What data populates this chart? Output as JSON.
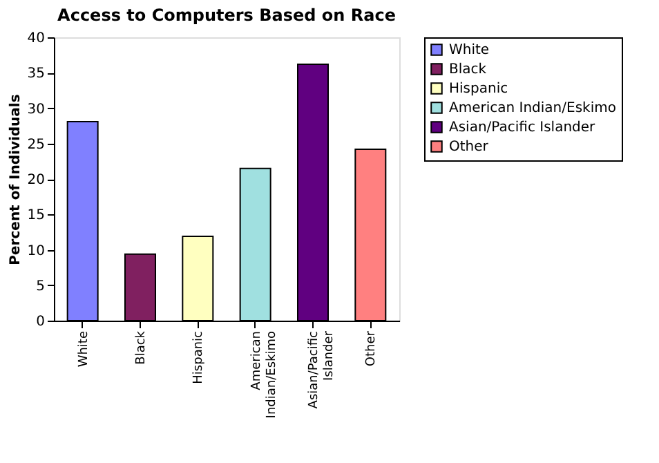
{
  "chart_data": {
    "type": "bar",
    "title": "Access to Computers Based on Race",
    "ylabel": "Percent of Individuals",
    "categories": [
      "White",
      "Black",
      "Hispanic",
      "American Indian/Eskimo",
      "Asian/Pacific Islander",
      "Other"
    ],
    "series": [
      {
        "name": "White",
        "color": "#8080ff",
        "values": [
          28.1,
          null,
          null,
          null,
          null,
          null
        ]
      },
      {
        "name": "Black",
        "color": "#802060",
        "values": [
          null,
          9.4,
          null,
          null,
          null,
          null
        ]
      },
      {
        "name": "Hispanic",
        "color": "#ffffc0",
        "values": [
          null,
          null,
          11.9,
          null,
          null,
          null
        ]
      },
      {
        "name": "American Indian/Eskimo",
        "color": "#a0e0e0",
        "values": [
          null,
          null,
          null,
          21.5,
          null,
          null
        ]
      },
      {
        "name": "Asian/Pacific Islander",
        "color": "#600080",
        "values": [
          null,
          null,
          null,
          null,
          36.2,
          null
        ]
      },
      {
        "name": "Other",
        "color": "#ff8080",
        "values": [
          null,
          null,
          null,
          null,
          null,
          24.2
        ]
      }
    ],
    "ylim": [
      0,
      40
    ],
    "yticks": [
      0,
      5,
      10,
      15,
      20,
      25,
      30,
      35,
      40
    ],
    "grid": false,
    "legend": "right"
  }
}
